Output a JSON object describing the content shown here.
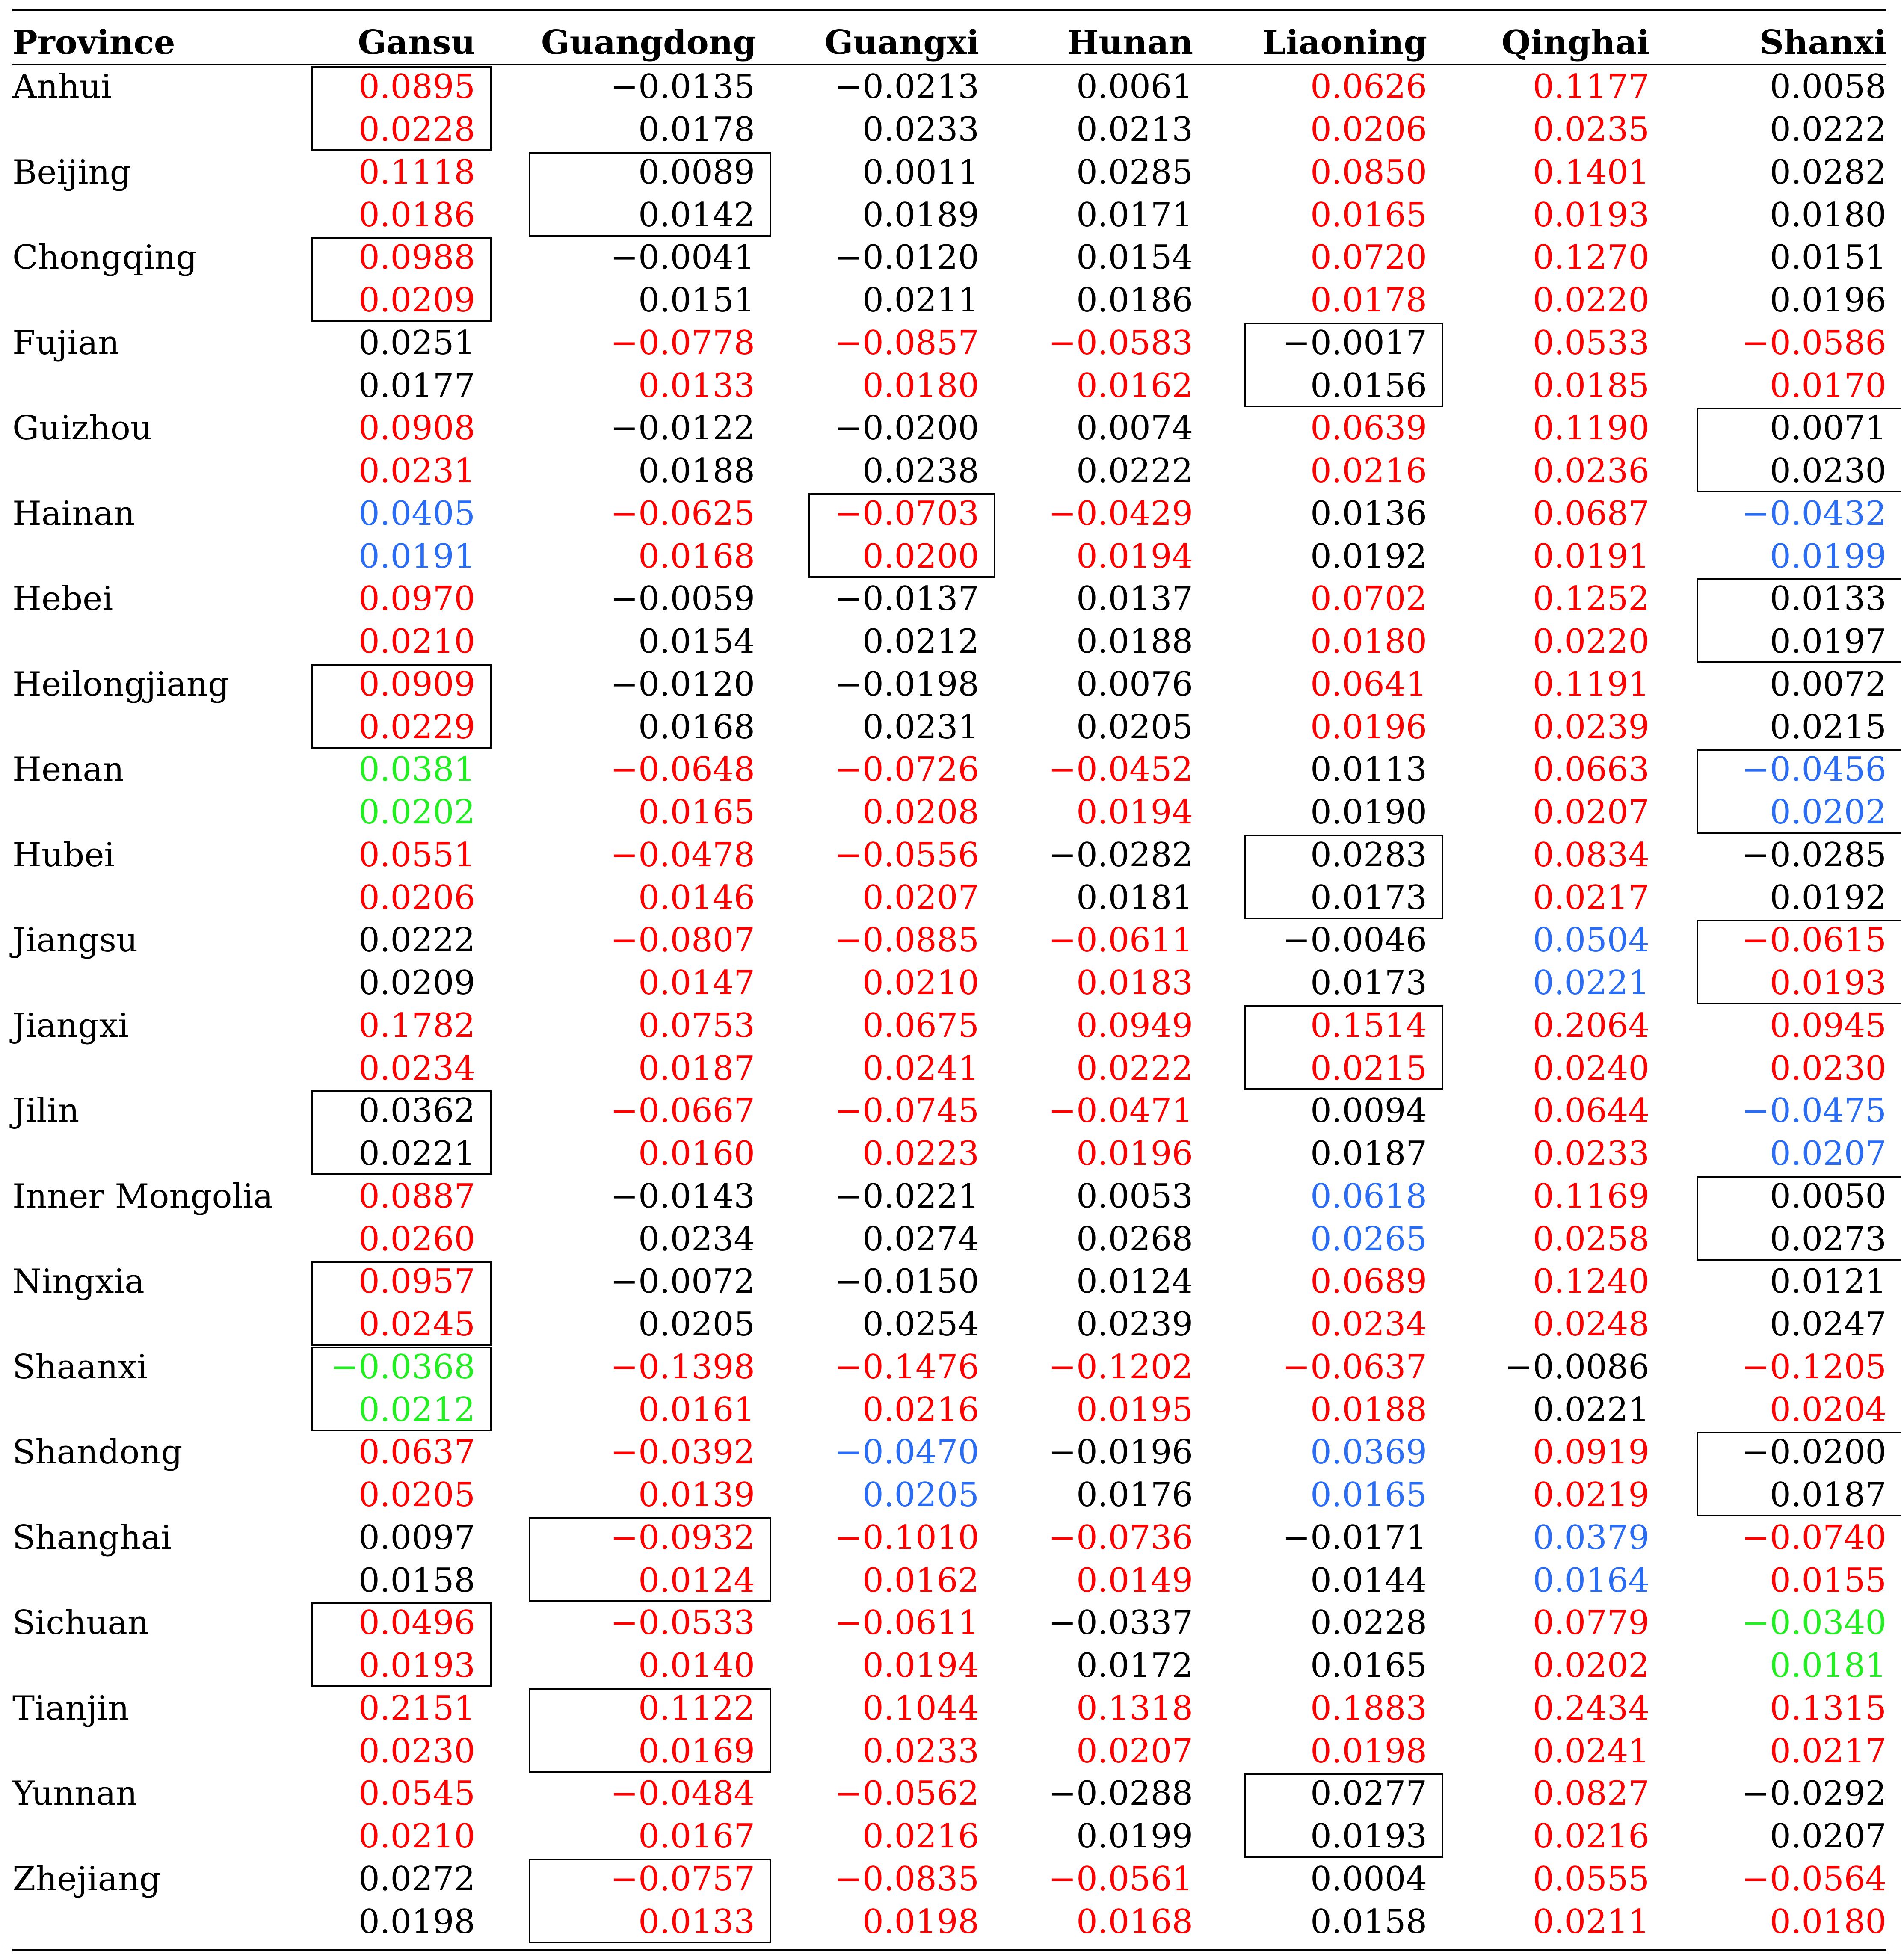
{
  "table": {
    "header_label": "Province",
    "columns": [
      "Gansu",
      "Guangdong",
      "Guangxi",
      "Hunan",
      "Liaoning",
      "Qinghai",
      "Shanxi"
    ],
    "colors": {
      "red": "#ff0000",
      "blue": "#2a6df4",
      "green": "#22ee22",
      "black": "#000000"
    },
    "rows": [
      {
        "province": "Anhui",
        "coef": [
          "0.0895",
          "−0.0135",
          "−0.0213",
          "0.0061",
          "0.0626",
          "0.1177",
          "0.0058"
        ],
        "se": [
          "0.0228",
          "0.0178",
          "0.0233",
          "0.0213",
          "0.0206",
          "0.0235",
          "0.0222"
        ],
        "color": [
          "red",
          "black",
          "black",
          "black",
          "red",
          "red",
          "black"
        ],
        "boxed": 0
      },
      {
        "province": "Beijing",
        "coef": [
          "0.1118",
          "0.0089",
          "0.0011",
          "0.0285",
          "0.0850",
          "0.1401",
          "0.0282"
        ],
        "se": [
          "0.0186",
          "0.0142",
          "0.0189",
          "0.0171",
          "0.0165",
          "0.0193",
          "0.0180"
        ],
        "color": [
          "red",
          "black",
          "black",
          "black",
          "red",
          "red",
          "black"
        ],
        "boxed": 1
      },
      {
        "province": "Chongqing",
        "coef": [
          "0.0988",
          "−0.0041",
          "−0.0120",
          "0.0154",
          "0.0720",
          "0.1270",
          "0.0151"
        ],
        "se": [
          "0.0209",
          "0.0151",
          "0.0211",
          "0.0186",
          "0.0178",
          "0.0220",
          "0.0196"
        ],
        "color": [
          "red",
          "black",
          "black",
          "black",
          "red",
          "red",
          "black"
        ],
        "boxed": 0
      },
      {
        "province": "Fujian",
        "coef": [
          "0.0251",
          "−0.0778",
          "−0.0857",
          "−0.0583",
          "−0.0017",
          "0.0533",
          "−0.0586"
        ],
        "se": [
          "0.0177",
          "0.0133",
          "0.0180",
          "0.0162",
          "0.0156",
          "0.0185",
          "0.0170"
        ],
        "color": [
          "black",
          "red",
          "red",
          "red",
          "black",
          "red",
          "red"
        ],
        "boxed": 4
      },
      {
        "province": "Guizhou",
        "coef": [
          "0.0908",
          "−0.0122",
          "−0.0200",
          "0.0074",
          "0.0639",
          "0.1190",
          "0.0071"
        ],
        "se": [
          "0.0231",
          "0.0188",
          "0.0238",
          "0.0222",
          "0.0216",
          "0.0236",
          "0.0230"
        ],
        "color": [
          "red",
          "black",
          "black",
          "black",
          "red",
          "red",
          "black"
        ],
        "boxed": 6
      },
      {
        "province": "Hainan",
        "coef": [
          "0.0405",
          "−0.0625",
          "−0.0703",
          "−0.0429",
          "0.0136",
          "0.0687",
          "−0.0432"
        ],
        "se": [
          "0.0191",
          "0.0168",
          "0.0200",
          "0.0194",
          "0.0192",
          "0.0191",
          "0.0199"
        ],
        "color": [
          "blue",
          "red",
          "red",
          "red",
          "black",
          "red",
          "blue"
        ],
        "boxed": 2
      },
      {
        "province": "Hebei",
        "coef": [
          "0.0970",
          "−0.0059",
          "−0.0137",
          "0.0137",
          "0.0702",
          "0.1252",
          "0.0133"
        ],
        "se": [
          "0.0210",
          "0.0154",
          "0.0212",
          "0.0188",
          "0.0180",
          "0.0220",
          "0.0197"
        ],
        "color": [
          "red",
          "black",
          "black",
          "black",
          "red",
          "red",
          "black"
        ],
        "boxed": 6
      },
      {
        "province": "Heilongjiang",
        "coef": [
          "0.0909",
          "−0.0120",
          "−0.0198",
          "0.0076",
          "0.0641",
          "0.1191",
          "0.0072"
        ],
        "se": [
          "0.0229",
          "0.0168",
          "0.0231",
          "0.0205",
          "0.0196",
          "0.0239",
          "0.0215"
        ],
        "color": [
          "red",
          "black",
          "black",
          "black",
          "red",
          "red",
          "black"
        ],
        "boxed": 0
      },
      {
        "province": "Henan",
        "coef": [
          "0.0381",
          "−0.0648",
          "−0.0726",
          "−0.0452",
          "0.0113",
          "0.0663",
          "−0.0456"
        ],
        "se": [
          "0.0202",
          "0.0165",
          "0.0208",
          "0.0194",
          "0.0190",
          "0.0207",
          "0.0202"
        ],
        "color": [
          "green",
          "red",
          "red",
          "red",
          "black",
          "red",
          "blue"
        ],
        "boxed": 6
      },
      {
        "province": "Hubei",
        "coef": [
          "0.0551",
          "−0.0478",
          "−0.0556",
          "−0.0282",
          "0.0283",
          "0.0834",
          "−0.0285"
        ],
        "se": [
          "0.0206",
          "0.0146",
          "0.0207",
          "0.0181",
          "0.0173",
          "0.0217",
          "0.0192"
        ],
        "color": [
          "red",
          "red",
          "red",
          "black",
          "black",
          "red",
          "black"
        ],
        "boxed": 4
      },
      {
        "province": "Jiangsu",
        "coef": [
          "0.0222",
          "−0.0807",
          "−0.0885",
          "−0.0611",
          "−0.0046",
          "0.0504",
          "−0.0615"
        ],
        "se": [
          "0.0209",
          "0.0147",
          "0.0210",
          "0.0183",
          "0.0173",
          "0.0221",
          "0.0193"
        ],
        "color": [
          "black",
          "red",
          "red",
          "red",
          "black",
          "blue",
          "red"
        ],
        "boxed": 6
      },
      {
        "province": "Jiangxi",
        "coef": [
          "0.1782",
          "0.0753",
          "0.0675",
          "0.0949",
          "0.1514",
          "0.2064",
          "0.0945"
        ],
        "se": [
          "0.0234",
          "0.0187",
          "0.0241",
          "0.0222",
          "0.0215",
          "0.0240",
          "0.0230"
        ],
        "color": [
          "red",
          "red",
          "red",
          "red",
          "red",
          "red",
          "red"
        ],
        "boxed": 4
      },
      {
        "province": "Jilin",
        "coef": [
          "0.0362",
          "−0.0667",
          "−0.0745",
          "−0.0471",
          "0.0094",
          "0.0644",
          "−0.0475"
        ],
        "se": [
          "0.0221",
          "0.0160",
          "0.0223",
          "0.0196",
          "0.0187",
          "0.0233",
          "0.0207"
        ],
        "color": [
          "black",
          "red",
          "red",
          "red",
          "black",
          "red",
          "blue"
        ],
        "boxed": 0
      },
      {
        "province": "Inner Mongolia",
        "coef": [
          "0.0887",
          "−0.0143",
          "−0.0221",
          "0.0053",
          "0.0618",
          "0.1169",
          "0.0050"
        ],
        "se": [
          "0.0260",
          "0.0234",
          "0.0274",
          "0.0268",
          "0.0265",
          "0.0258",
          "0.0273"
        ],
        "color": [
          "red",
          "black",
          "black",
          "black",
          "blue",
          "red",
          "black"
        ],
        "boxed": 6
      },
      {
        "province": "Ningxia",
        "coef": [
          "0.0957",
          "−0.0072",
          "−0.0150",
          "0.0124",
          "0.0689",
          "0.1240",
          "0.0121"
        ],
        "se": [
          "0.0245",
          "0.0205",
          "0.0254",
          "0.0239",
          "0.0234",
          "0.0248",
          "0.0247"
        ],
        "color": [
          "red",
          "black",
          "black",
          "black",
          "red",
          "red",
          "black"
        ],
        "boxed": 0
      },
      {
        "province": "Shaanxi",
        "coef": [
          "−0.0368",
          "−0.1398",
          "−0.1476",
          "−0.1202",
          "−0.0637",
          "−0.0086",
          "−0.1205"
        ],
        "se": [
          "0.0212",
          "0.0161",
          "0.0216",
          "0.0195",
          "0.0188",
          "0.0221",
          "0.0204"
        ],
        "color": [
          "green",
          "red",
          "red",
          "red",
          "red",
          "black",
          "red"
        ],
        "boxed": 0
      },
      {
        "province": "Shandong",
        "coef": [
          "0.0637",
          "−0.0392",
          "−0.0470",
          "−0.0196",
          "0.0369",
          "0.0919",
          "−0.0200"
        ],
        "se": [
          "0.0205",
          "0.0139",
          "0.0205",
          "0.0176",
          "0.0165",
          "0.0219",
          "0.0187"
        ],
        "color": [
          "red",
          "red",
          "blue",
          "black",
          "blue",
          "red",
          "black"
        ],
        "boxed": 6
      },
      {
        "province": "Shanghai",
        "coef": [
          "0.0097",
          "−0.0932",
          "−0.1010",
          "−0.0736",
          "−0.0171",
          "0.0379",
          "−0.0740"
        ],
        "se": [
          "0.0158",
          "0.0124",
          "0.0162",
          "0.0149",
          "0.0144",
          "0.0164",
          "0.0155"
        ],
        "color": [
          "black",
          "red",
          "red",
          "red",
          "black",
          "blue",
          "red"
        ],
        "boxed": 1
      },
      {
        "province": "Sichuan",
        "coef": [
          "0.0496",
          "−0.0533",
          "−0.0611",
          "−0.0337",
          "0.0228",
          "0.0779",
          "−0.0340"
        ],
        "se": [
          "0.0193",
          "0.0140",
          "0.0194",
          "0.0172",
          "0.0165",
          "0.0202",
          "0.0181"
        ],
        "color": [
          "red",
          "red",
          "red",
          "black",
          "black",
          "red",
          "green"
        ],
        "boxed": 0
      },
      {
        "province": "Tianjin",
        "coef": [
          "0.2151",
          "0.1122",
          "0.1044",
          "0.1318",
          "0.1883",
          "0.2434",
          "0.1315"
        ],
        "se": [
          "0.0230",
          "0.0169",
          "0.0233",
          "0.0207",
          "0.0198",
          "0.0241",
          "0.0217"
        ],
        "color": [
          "red",
          "red",
          "red",
          "red",
          "red",
          "red",
          "red"
        ],
        "boxed": 1
      },
      {
        "province": "Yunnan",
        "coef": [
          "0.0545",
          "−0.0484",
          "−0.0562",
          "−0.0288",
          "0.0277",
          "0.0827",
          "−0.0292"
        ],
        "se": [
          "0.0210",
          "0.0167",
          "0.0216",
          "0.0199",
          "0.0193",
          "0.0216",
          "0.0207"
        ],
        "color": [
          "red",
          "red",
          "red",
          "black",
          "black",
          "red",
          "black"
        ],
        "boxed": 4
      },
      {
        "province": "Zhejiang",
        "coef": [
          "0.0272",
          "−0.0757",
          "−0.0835",
          "−0.0561",
          "0.0004",
          "0.0555",
          "−0.0564"
        ],
        "se": [
          "0.0198",
          "0.0133",
          "0.0198",
          "0.0168",
          "0.0158",
          "0.0211",
          "0.0180"
        ],
        "color": [
          "black",
          "red",
          "red",
          "red",
          "black",
          "red",
          "red"
        ],
        "boxed": 1
      }
    ]
  }
}
